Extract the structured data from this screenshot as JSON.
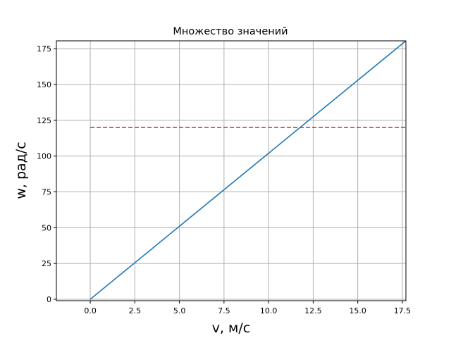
{
  "chart_data": {
    "type": "line",
    "title": "Множество значений",
    "xlabel": "v, м/с",
    "ylabel": "w, рад/с",
    "xlim": [
      -1.9,
      17.7
    ],
    "ylim": [
      -1,
      180.5
    ],
    "xticks": [
      0.0,
      2.5,
      5.0,
      7.5,
      10.0,
      12.5,
      15.0,
      17.5
    ],
    "xtick_labels": [
      "0.0",
      "2.5",
      "5.0",
      "7.5",
      "10.0",
      "12.5",
      "15.0",
      "17.5"
    ],
    "yticks": [
      0,
      25,
      50,
      75,
      100,
      125,
      150,
      175
    ],
    "ytick_labels": [
      "0",
      "25",
      "50",
      "75",
      "100",
      "125",
      "150",
      "175"
    ],
    "grid": true,
    "series": [
      {
        "color": "#1f77b4",
        "style": "solid",
        "x": [
          0,
          17.7
        ],
        "y": [
          0,
          180.5
        ]
      },
      {
        "color": "#d62728",
        "style": "dashed",
        "x": [
          0,
          17.7
        ],
        "y": [
          120,
          120
        ]
      }
    ]
  }
}
